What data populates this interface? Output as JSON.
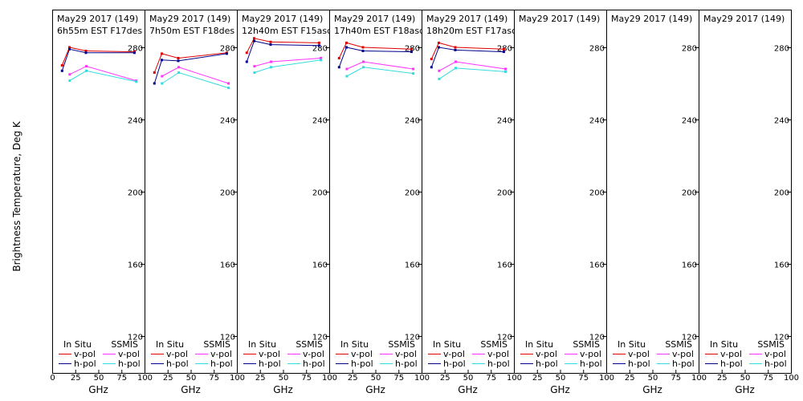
{
  "figure": {
    "ylabel": "Brightness Temperature, Deg K",
    "xlabel": "GHz",
    "xticks": [
      "0",
      "25",
      "50",
      "75",
      "100"
    ],
    "yticks": [
      "120",
      "160",
      "200",
      "240",
      "280"
    ],
    "legend": {
      "insitu_title": "In Situ",
      "ssmis_title": "SSMIS",
      "vpol_label": "v-pol",
      "hpol_label": "h-pol"
    },
    "colors": {
      "insitu_v": "#e00000",
      "insitu_h": "#00008b",
      "ssmis_v": "#ff33ff",
      "ssmis_h": "#33dddd"
    }
  },
  "chart_data": [
    {
      "type": "line",
      "title": "May29 2017 (149)",
      "subtitle": "6h55m  EST  F17des",
      "xlim": [
        0,
        100
      ],
      "ylim": [
        110,
        295
      ],
      "series": [
        {
          "name": "In Situ v-pol",
          "x": [
            10.7,
            18.7,
            36.5,
            89
          ],
          "y": [
            270,
            280,
            278,
            277.5
          ]
        },
        {
          "name": "In Situ h-pol",
          "x": [
            10.7,
            18.7,
            36.5,
            89
          ],
          "y": [
            267,
            279,
            277,
            277
          ]
        },
        {
          "name": "SSMIS v-pol",
          "x": [
            19,
            37,
            91
          ],
          "y": [
            265,
            269.5,
            261.5
          ]
        },
        {
          "name": "SSMIS h-pol",
          "x": [
            19,
            37,
            91
          ],
          "y": [
            261.5,
            267,
            261
          ]
        }
      ]
    },
    {
      "type": "line",
      "title": "May29 2017 (149)",
      "subtitle": "7h50m  EST  F18des",
      "xlim": [
        0,
        100
      ],
      "ylim": [
        110,
        295
      ],
      "series": [
        {
          "name": "In Situ v-pol",
          "x": [
            10.7,
            18.7,
            36.5,
            89
          ],
          "y": [
            266,
            276.5,
            274,
            277
          ]
        },
        {
          "name": "In Situ h-pol",
          "x": [
            10.7,
            18.7,
            36.5,
            89
          ],
          "y": [
            260,
            273,
            272.5,
            276.5
          ]
        },
        {
          "name": "SSMIS v-pol",
          "x": [
            19,
            37,
            91
          ],
          "y": [
            264,
            269,
            260
          ]
        },
        {
          "name": "SSMIS h-pol",
          "x": [
            19,
            37,
            91
          ],
          "y": [
            260,
            266,
            257.5
          ]
        }
      ]
    },
    {
      "type": "line",
      "title": "May29 2017 (149)",
      "subtitle": "12h40m  EST  F15asc",
      "xlim": [
        0,
        100
      ],
      "ylim": [
        110,
        295
      ],
      "series": [
        {
          "name": "In Situ v-pol",
          "x": [
            10.7,
            18.7,
            36.5,
            89
          ],
          "y": [
            277,
            285,
            283,
            282.5
          ]
        },
        {
          "name": "In Situ h-pol",
          "x": [
            10.7,
            18.7,
            36.5,
            89
          ],
          "y": [
            272,
            283.5,
            281.5,
            281
          ]
        },
        {
          "name": "SSMIS v-pol",
          "x": [
            19,
            37,
            91
          ],
          "y": [
            269.5,
            272,
            274
          ]
        },
        {
          "name": "SSMIS h-pol",
          "x": [
            19,
            37,
            91
          ],
          "y": [
            266,
            269,
            273
          ]
        }
      ]
    },
    {
      "type": "line",
      "title": "May29 2017 (149)",
      "subtitle": "17h40m  EST  F18asc",
      "xlim": [
        0,
        100
      ],
      "ylim": [
        110,
        295
      ],
      "series": [
        {
          "name": "In Situ v-pol",
          "x": [
            10.7,
            18.7,
            36.5,
            89
          ],
          "y": [
            274,
            282.5,
            280,
            279
          ]
        },
        {
          "name": "In Situ h-pol",
          "x": [
            10.7,
            18.7,
            36.5,
            89
          ],
          "y": [
            269,
            280,
            278,
            277.5
          ]
        },
        {
          "name": "SSMIS v-pol",
          "x": [
            19,
            37,
            91
          ],
          "y": [
            268,
            272,
            268
          ]
        },
        {
          "name": "SSMIS h-pol",
          "x": [
            19,
            37,
            91
          ],
          "y": [
            264,
            269,
            265.5
          ]
        }
      ]
    },
    {
      "type": "line",
      "title": "May29 2017 (149)",
      "subtitle": "18h20m  EST  F17asc",
      "xlim": [
        0,
        100
      ],
      "ylim": [
        110,
        295
      ],
      "series": [
        {
          "name": "In Situ v-pol",
          "x": [
            10.7,
            18.7,
            36.5,
            89
          ],
          "y": [
            273.5,
            282.5,
            280,
            279
          ]
        },
        {
          "name": "In Situ h-pol",
          "x": [
            10.7,
            18.7,
            36.5,
            89
          ],
          "y": [
            269,
            280,
            278.5,
            277.5
          ]
        },
        {
          "name": "SSMIS v-pol",
          "x": [
            19,
            37,
            91
          ],
          "y": [
            267,
            272,
            268
          ]
        },
        {
          "name": "SSMIS h-pol",
          "x": [
            19,
            37,
            91
          ],
          "y": [
            262.5,
            268.5,
            266.5
          ]
        }
      ]
    },
    {
      "type": "line",
      "title": "May29 2017 (149)",
      "subtitle": "",
      "xlim": [
        0,
        100
      ],
      "ylim": [
        110,
        295
      ],
      "series": []
    },
    {
      "type": "line",
      "title": "May29 2017 (149)",
      "subtitle": "",
      "xlim": [
        0,
        100
      ],
      "ylim": [
        110,
        295
      ],
      "series": []
    },
    {
      "type": "line",
      "title": "May29 2017 (149)",
      "subtitle": "",
      "xlim": [
        0,
        100
      ],
      "ylim": [
        110,
        295
      ],
      "series": []
    }
  ]
}
